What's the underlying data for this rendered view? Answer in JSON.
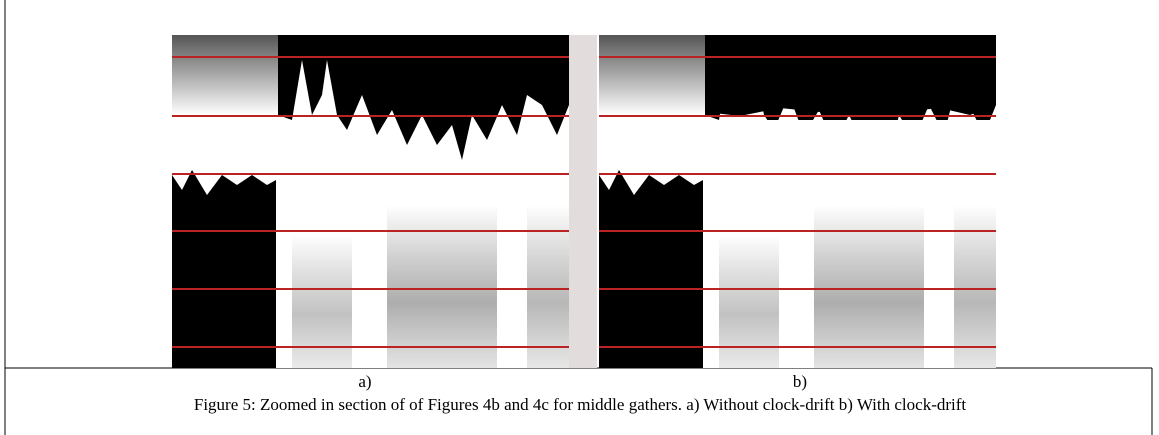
{
  "figure": {
    "panels": [
      {
        "label": "a)"
      },
      {
        "label": "b)"
      }
    ],
    "caption": "Figure 5:  Zoomed in section of of Figures 4b and 4c for middle gathers. a) Without clock-drift b) With clock-drift"
  }
}
